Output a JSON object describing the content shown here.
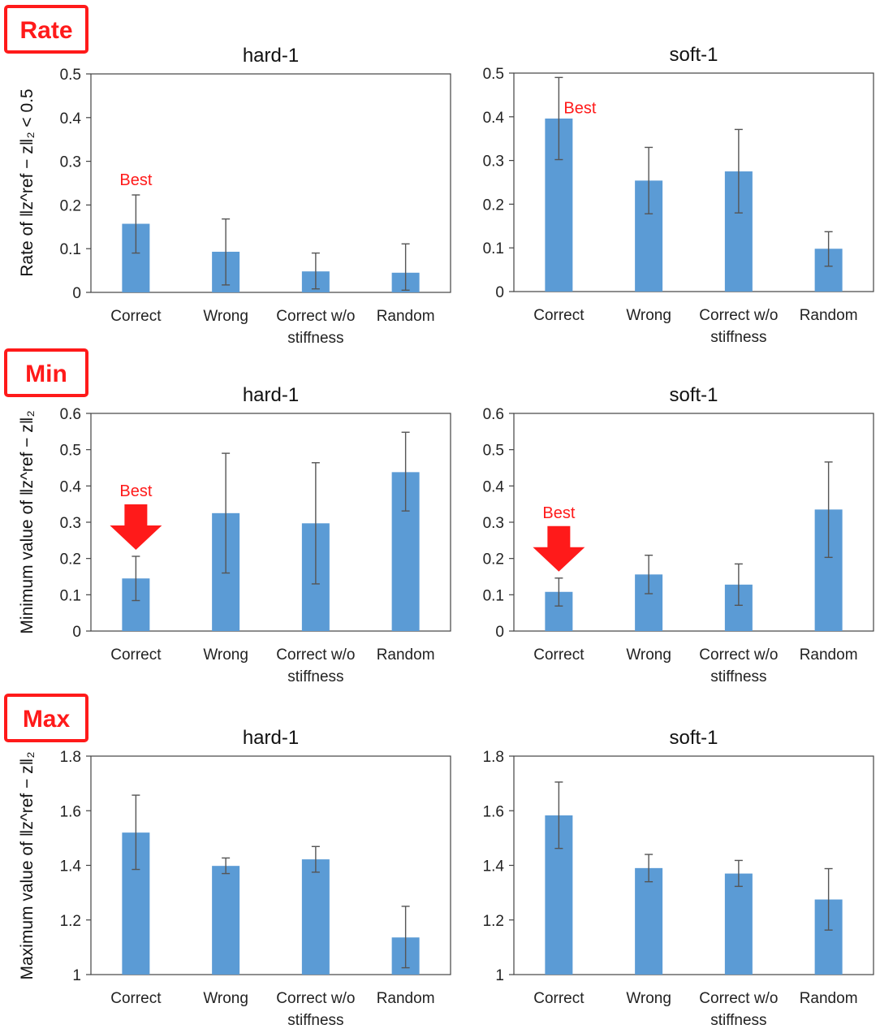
{
  "colors": {
    "bar": "#5b9bd5",
    "accent": "#ff1a1a",
    "axis": "#444444",
    "error": "#555555"
  },
  "sections": [
    {
      "tag": "Rate",
      "ylabel": "Rate of ‖z^ref − z‖₂ < 0.5"
    },
    {
      "tag": "Min",
      "ylabel": "Minimum value of ‖z^ref − z‖₂"
    },
    {
      "tag": "Max",
      "ylabel": "Maximum value of ‖z^ref − z‖₂"
    }
  ],
  "best_label": "Best",
  "chart_data": [
    {
      "type": "bar",
      "section": 0,
      "title": "hard-1",
      "categories": [
        "Correct",
        "Wrong",
        "Correct w/o stiffness",
        "Random"
      ],
      "values": [
        0.157,
        0.093,
        0.048,
        0.045
      ],
      "err_low": [
        0.09,
        0.017,
        0.008,
        0.005
      ],
      "err_high": [
        0.223,
        0.168,
        0.09,
        0.111
      ],
      "ylim": [
        0,
        0.5
      ],
      "yticks": [
        "0",
        "0.1",
        "0.2",
        "0.3",
        "0.4",
        "0.5"
      ],
      "tickvals": [
        0,
        0.1,
        0.2,
        0.3,
        0.4,
        0.5
      ],
      "best_index": 0,
      "best_arrow": false
    },
    {
      "type": "bar",
      "section": 0,
      "title": "soft-1",
      "categories": [
        "Correct",
        "Wrong",
        "Correct w/o stiffness",
        "Random"
      ],
      "values": [
        0.396,
        0.254,
        0.275,
        0.098
      ],
      "err_low": [
        0.302,
        0.178,
        0.18,
        0.058
      ],
      "err_high": [
        0.49,
        0.33,
        0.371,
        0.137
      ],
      "ylim": [
        0,
        0.5
      ],
      "yticks": [
        "0",
        "0.1",
        "0.2",
        "0.3",
        "0.4",
        "0.5"
      ],
      "tickvals": [
        0,
        0.1,
        0.2,
        0.3,
        0.4,
        0.5
      ],
      "best_index": 0,
      "best_arrow": false
    },
    {
      "type": "bar",
      "section": 1,
      "title": "hard-1",
      "categories": [
        "Correct",
        "Wrong",
        "Correct w/o stiffness",
        "Random"
      ],
      "values": [
        0.145,
        0.325,
        0.297,
        0.438
      ],
      "err_low": [
        0.084,
        0.16,
        0.13,
        0.331
      ],
      "err_high": [
        0.206,
        0.49,
        0.464,
        0.548
      ],
      "ylim": [
        0,
        0.6
      ],
      "yticks": [
        "0",
        "0.1",
        "0.2",
        "0.3",
        "0.4",
        "0.5",
        "0.6"
      ],
      "tickvals": [
        0,
        0.1,
        0.2,
        0.3,
        0.4,
        0.5,
        0.6
      ],
      "best_index": 0,
      "best_arrow": true
    },
    {
      "type": "bar",
      "section": 1,
      "title": "soft-1",
      "categories": [
        "Correct",
        "Wrong",
        "Correct w/o stiffness",
        "Random"
      ],
      "values": [
        0.108,
        0.156,
        0.128,
        0.335
      ],
      "err_low": [
        0.069,
        0.103,
        0.071,
        0.203
      ],
      "err_high": [
        0.146,
        0.209,
        0.185,
        0.466
      ],
      "ylim": [
        0,
        0.6
      ],
      "yticks": [
        "0",
        "0.1",
        "0.2",
        "0.3",
        "0.4",
        "0.5",
        "0.6"
      ],
      "tickvals": [
        0,
        0.1,
        0.2,
        0.3,
        0.4,
        0.5,
        0.6
      ],
      "best_index": 0,
      "best_arrow": true
    },
    {
      "type": "bar",
      "section": 2,
      "title": "hard-1",
      "categories": [
        "Correct",
        "Wrong",
        "Correct w/o stiffness",
        "Random"
      ],
      "values": [
        1.52,
        1.398,
        1.422,
        1.136
      ],
      "err_low": [
        1.385,
        1.37,
        1.375,
        1.025
      ],
      "err_high": [
        1.657,
        1.427,
        1.469,
        1.25
      ],
      "ylim": [
        1,
        1.8
      ],
      "yticks": [
        "1",
        "1.2",
        "1.4",
        "1.6",
        "1.8"
      ],
      "tickvals": [
        1,
        1.2,
        1.4,
        1.6,
        1.8
      ],
      "best_index": null,
      "best_arrow": false
    },
    {
      "type": "bar",
      "section": 2,
      "title": "soft-1",
      "categories": [
        "Correct",
        "Wrong",
        "Correct w/o stiffness",
        "Random"
      ],
      "values": [
        1.583,
        1.39,
        1.37,
        1.275
      ],
      "err_low": [
        1.462,
        1.34,
        1.323,
        1.163
      ],
      "err_high": [
        1.705,
        1.44,
        1.418,
        1.388
      ],
      "ylim": [
        1,
        1.8
      ],
      "yticks": [
        "1",
        "1.2",
        "1.4",
        "1.6",
        "1.8"
      ],
      "tickvals": [
        1,
        1.2,
        1.4,
        1.6,
        1.8
      ],
      "best_index": null,
      "best_arrow": false
    }
  ]
}
